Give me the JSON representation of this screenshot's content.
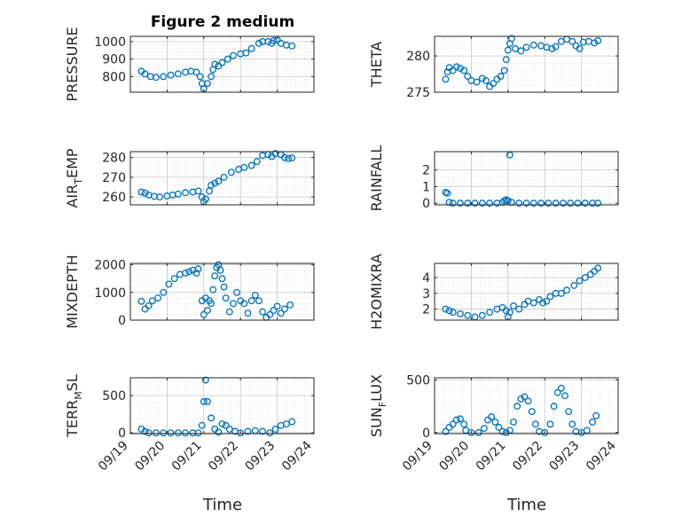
{
  "chart_data": {
    "type": "scatter",
    "title": "Figure 2 medium",
    "marker_color": "#0072BD",
    "grid": true,
    "x_tick_labels": [
      "09/19",
      "09/20",
      "09/21",
      "09/22",
      "09/23",
      "09/24"
    ],
    "x_tick_days": [
      19,
      20,
      21,
      22,
      23,
      24
    ],
    "xlim_days": [
      19,
      24
    ],
    "xlabel": "Time",
    "panels": [
      {
        "id": "pressure",
        "ylabel_main": "PRESSURE",
        "ylabel_sub": "",
        "ylabel_tail": "",
        "ylim": [
          710,
          1030
        ],
        "yticks": [
          800,
          900,
          1000
        ],
        "ytick_labels": [
          "800",
          "900",
          "1000"
        ],
        "series": [
          [
            19.3,
            830
          ],
          [
            19.4,
            815
          ],
          [
            19.55,
            800
          ],
          [
            19.7,
            795
          ],
          [
            19.9,
            800
          ],
          [
            20.1,
            808
          ],
          [
            20.3,
            815
          ],
          [
            20.5,
            825
          ],
          [
            20.65,
            830
          ],
          [
            20.8,
            825
          ],
          [
            20.9,
            800
          ],
          [
            20.95,
            760
          ],
          [
            21.0,
            730
          ],
          [
            21.1,
            760
          ],
          [
            21.2,
            800
          ],
          [
            21.25,
            840
          ],
          [
            21.3,
            870
          ],
          [
            21.4,
            860
          ],
          [
            21.5,
            880
          ],
          [
            21.65,
            900
          ],
          [
            21.8,
            920
          ],
          [
            22.0,
            930
          ],
          [
            22.15,
            935
          ],
          [
            22.3,
            960
          ],
          [
            22.5,
            990
          ],
          [
            22.6,
            1000
          ],
          [
            22.75,
            1000
          ],
          [
            22.85,
            990
          ],
          [
            22.9,
            1005
          ],
          [
            23.0,
            1010
          ],
          [
            23.1,
            990
          ],
          [
            23.25,
            980
          ],
          [
            23.4,
            975
          ]
        ]
      },
      {
        "id": "theta",
        "ylabel_main": "THETA",
        "ylabel_sub": "",
        "ylabel_tail": "",
        "ylim": [
          275,
          282.7
        ],
        "yticks": [
          275,
          280
        ],
        "ytick_labels": [
          "275",
          "280"
        ],
        "series": [
          [
            19.3,
            276.8
          ],
          [
            19.35,
            277.8
          ],
          [
            19.4,
            278.4
          ],
          [
            19.5,
            278.0
          ],
          [
            19.6,
            278.5
          ],
          [
            19.7,
            278.3
          ],
          [
            19.8,
            278.0
          ],
          [
            19.9,
            277.2
          ],
          [
            20.0,
            276.6
          ],
          [
            20.15,
            276.4
          ],
          [
            20.3,
            276.9
          ],
          [
            20.4,
            276.6
          ],
          [
            20.5,
            275.8
          ],
          [
            20.6,
            276.2
          ],
          [
            20.7,
            276.8
          ],
          [
            20.8,
            277.2
          ],
          [
            20.9,
            278.0
          ],
          [
            20.95,
            279.5
          ],
          [
            21.0,
            280.8
          ],
          [
            21.05,
            281.7
          ],
          [
            21.1,
            282.4
          ],
          [
            21.2,
            281.0
          ],
          [
            21.35,
            280.7
          ],
          [
            21.5,
            281.2
          ],
          [
            21.7,
            281.5
          ],
          [
            21.9,
            281.4
          ],
          [
            22.05,
            281.2
          ],
          [
            22.2,
            281.0
          ],
          [
            22.3,
            281.3
          ],
          [
            22.45,
            282.0
          ],
          [
            22.6,
            282.3
          ],
          [
            22.75,
            282.0
          ],
          [
            22.85,
            281.4
          ],
          [
            22.95,
            281.0
          ],
          [
            23.05,
            281.9
          ],
          [
            23.2,
            282.0
          ],
          [
            23.35,
            281.8
          ],
          [
            23.45,
            282.1
          ]
        ]
      },
      {
        "id": "air_temp",
        "ylabel_main": "AIR",
        "ylabel_sub": "T",
        "ylabel_tail": "EMP",
        "ylim": [
          256,
          283
        ],
        "yticks": [
          260,
          270,
          280
        ],
        "ytick_labels": [
          "260",
          "270",
          "280"
        ],
        "series": [
          [
            19.3,
            262.5
          ],
          [
            19.4,
            262.0
          ],
          [
            19.5,
            261.0
          ],
          [
            19.65,
            260.3
          ],
          [
            19.8,
            260.0
          ],
          [
            20.0,
            260.5
          ],
          [
            20.15,
            261.0
          ],
          [
            20.3,
            261.5
          ],
          [
            20.5,
            262.2
          ],
          [
            20.7,
            262.5
          ],
          [
            20.85,
            263.0
          ],
          [
            20.95,
            260.0
          ],
          [
            21.0,
            257.5
          ],
          [
            21.05,
            259.0
          ],
          [
            21.15,
            263.0
          ],
          [
            21.2,
            266.0
          ],
          [
            21.3,
            267.0
          ],
          [
            21.4,
            268.0
          ],
          [
            21.55,
            270.0
          ],
          [
            21.75,
            272.5
          ],
          [
            21.95,
            274.0
          ],
          [
            22.1,
            275.0
          ],
          [
            22.3,
            276.0
          ],
          [
            22.45,
            278.0
          ],
          [
            22.6,
            281.0
          ],
          [
            22.75,
            281.5
          ],
          [
            22.85,
            280.5
          ],
          [
            22.95,
            282.0
          ],
          [
            23.1,
            281.5
          ],
          [
            23.2,
            280.0
          ],
          [
            23.3,
            279.5
          ],
          [
            23.4,
            279.8
          ]
        ]
      },
      {
        "id": "rainfall",
        "ylabel_main": "RAINFALL",
        "ylabel_sub": "",
        "ylabel_tail": "",
        "ylim": [
          -0.1,
          3.1
        ],
        "yticks": [
          0,
          1,
          2
        ],
        "ytick_labels": [
          "0",
          "1",
          "2"
        ],
        "series": [
          [
            19.3,
            0.65
          ],
          [
            19.35,
            0.6
          ],
          [
            19.4,
            0.05
          ],
          [
            19.5,
            0
          ],
          [
            19.7,
            0
          ],
          [
            19.9,
            0
          ],
          [
            20.1,
            0
          ],
          [
            20.3,
            0
          ],
          [
            20.5,
            0
          ],
          [
            20.7,
            0
          ],
          [
            20.85,
            0.05
          ],
          [
            20.9,
            0.15
          ],
          [
            20.95,
            0.2
          ],
          [
            21.0,
            0.15
          ],
          [
            21.05,
            2.9
          ],
          [
            21.1,
            0.05
          ],
          [
            21.3,
            0
          ],
          [
            21.5,
            0
          ],
          [
            21.7,
            0
          ],
          [
            21.9,
            0
          ],
          [
            22.1,
            0
          ],
          [
            22.3,
            0
          ],
          [
            22.5,
            0
          ],
          [
            22.7,
            0
          ],
          [
            22.9,
            0
          ],
          [
            23.1,
            0
          ],
          [
            23.3,
            0
          ],
          [
            23.45,
            0
          ]
        ]
      },
      {
        "id": "mixdepth",
        "ylabel_main": "MIXDEPTH",
        "ylabel_sub": "",
        "ylabel_tail": "",
        "ylim": [
          0,
          2050
        ],
        "yticks": [
          0,
          1000,
          2000
        ],
        "ytick_labels": [
          "0",
          "1000",
          "2000"
        ],
        "series": [
          [
            19.3,
            680
          ],
          [
            19.4,
            400
          ],
          [
            19.5,
            520
          ],
          [
            19.6,
            700
          ],
          [
            19.75,
            800
          ],
          [
            19.9,
            1000
          ],
          [
            20.05,
            1300
          ],
          [
            20.2,
            1500
          ],
          [
            20.35,
            1650
          ],
          [
            20.5,
            1700
          ],
          [
            20.6,
            1750
          ],
          [
            20.7,
            1800
          ],
          [
            20.8,
            1700
          ],
          [
            20.85,
            1850
          ],
          [
            20.95,
            700
          ],
          [
            21.0,
            200
          ],
          [
            21.05,
            800
          ],
          [
            21.1,
            350
          ],
          [
            21.15,
            700
          ],
          [
            21.2,
            600
          ],
          [
            21.25,
            1100
          ],
          [
            21.3,
            1600
          ],
          [
            21.35,
            1900
          ],
          [
            21.4,
            2000
          ],
          [
            21.45,
            1800
          ],
          [
            21.5,
            1500
          ],
          [
            21.55,
            1200
          ],
          [
            21.6,
            800
          ],
          [
            21.7,
            300
          ],
          [
            21.8,
            600
          ],
          [
            21.9,
            1000
          ],
          [
            22.0,
            700
          ],
          [
            22.1,
            600
          ],
          [
            22.2,
            250
          ],
          [
            22.3,
            700
          ],
          [
            22.4,
            900
          ],
          [
            22.5,
            700
          ],
          [
            22.6,
            300
          ],
          [
            22.7,
            100
          ],
          [
            22.8,
            200
          ],
          [
            22.9,
            350
          ],
          [
            23.0,
            500
          ],
          [
            23.1,
            250
          ],
          [
            23.2,
            400
          ],
          [
            23.35,
            550
          ]
        ]
      },
      {
        "id": "h2omixra",
        "ylabel_main": "H2OMIXRA",
        "ylabel_sub": "",
        "ylabel_tail": "",
        "ylim": [
          1.3,
          4.9
        ],
        "yticks": [
          2,
          3,
          4
        ],
        "ytick_labels": [
          "2",
          "3",
          "4"
        ],
        "series": [
          [
            19.3,
            2.0
          ],
          [
            19.4,
            1.9
          ],
          [
            19.5,
            1.8
          ],
          [
            19.7,
            1.7
          ],
          [
            19.9,
            1.6
          ],
          [
            20.1,
            1.5
          ],
          [
            20.3,
            1.6
          ],
          [
            20.5,
            1.8
          ],
          [
            20.7,
            2.0
          ],
          [
            20.85,
            2.1
          ],
          [
            20.95,
            1.9
          ],
          [
            21.0,
            1.5
          ],
          [
            21.05,
            1.8
          ],
          [
            21.15,
            2.2
          ],
          [
            21.3,
            2.0
          ],
          [
            21.45,
            2.3
          ],
          [
            21.55,
            2.5
          ],
          [
            21.7,
            2.4
          ],
          [
            21.85,
            2.6
          ],
          [
            21.95,
            2.4
          ],
          [
            22.05,
            2.5
          ],
          [
            22.15,
            2.8
          ],
          [
            22.3,
            3.0
          ],
          [
            22.45,
            3.0
          ],
          [
            22.6,
            3.2
          ],
          [
            22.8,
            3.5
          ],
          [
            22.95,
            3.8
          ],
          [
            23.1,
            4.0
          ],
          [
            23.25,
            4.2
          ],
          [
            23.35,
            4.4
          ],
          [
            23.45,
            4.6
          ]
        ]
      },
      {
        "id": "terr_msl",
        "ylabel_main": "TERR",
        "ylabel_sub": "M",
        "ylabel_tail": "SL",
        "ylim": [
          -10,
          740
        ],
        "yticks": [
          0,
          500
        ],
        "ytick_labels": [
          "0",
          "500"
        ],
        "series": [
          [
            19.3,
            50
          ],
          [
            19.4,
            20
          ],
          [
            19.5,
            0
          ],
          [
            19.7,
            0
          ],
          [
            19.9,
            0
          ],
          [
            20.1,
            0
          ],
          [
            20.3,
            0
          ],
          [
            20.5,
            0
          ],
          [
            20.7,
            0
          ],
          [
            20.85,
            0
          ],
          [
            20.95,
            100
          ],
          [
            21.0,
            420
          ],
          [
            21.05,
            710
          ],
          [
            21.1,
            420
          ],
          [
            21.2,
            200
          ],
          [
            21.3,
            50
          ],
          [
            21.4,
            10
          ],
          [
            21.5,
            120
          ],
          [
            21.6,
            100
          ],
          [
            21.7,
            50
          ],
          [
            21.85,
            20
          ],
          [
            22.0,
            0
          ],
          [
            22.2,
            20
          ],
          [
            22.4,
            30
          ],
          [
            22.6,
            20
          ],
          [
            22.8,
            0
          ],
          [
            22.95,
            50
          ],
          [
            23.1,
            100
          ],
          [
            23.25,
            120
          ],
          [
            23.4,
            150
          ]
        ]
      },
      {
        "id": "sun_flux",
        "ylabel_main": "SUN",
        "ylabel_sub": "F",
        "ylabel_tail": "LUX",
        "ylim": [
          -10,
          520
        ],
        "yticks": [
          0,
          500
        ],
        "ytick_labels": [
          "0",
          "500"
        ],
        "series": [
          [
            19.3,
            10
          ],
          [
            19.4,
            50
          ],
          [
            19.5,
            80
          ],
          [
            19.6,
            120
          ],
          [
            19.7,
            130
          ],
          [
            19.8,
            80
          ],
          [
            19.85,
            20
          ],
          [
            20.0,
            0
          ],
          [
            20.2,
            0
          ],
          [
            20.35,
            40
          ],
          [
            20.45,
            120
          ],
          [
            20.55,
            150
          ],
          [
            20.65,
            100
          ],
          [
            20.75,
            50
          ],
          [
            20.85,
            10
          ],
          [
            20.95,
            0
          ],
          [
            21.05,
            20
          ],
          [
            21.15,
            100
          ],
          [
            21.25,
            250
          ],
          [
            21.35,
            320
          ],
          [
            21.45,
            340
          ],
          [
            21.55,
            300
          ],
          [
            21.65,
            200
          ],
          [
            21.75,
            80
          ],
          [
            21.85,
            10
          ],
          [
            22.0,
            0
          ],
          [
            22.15,
            80
          ],
          [
            22.25,
            250
          ],
          [
            22.35,
            380
          ],
          [
            22.45,
            420
          ],
          [
            22.55,
            350
          ],
          [
            22.65,
            200
          ],
          [
            22.75,
            80
          ],
          [
            22.85,
            10
          ],
          [
            23.0,
            0
          ],
          [
            23.15,
            20
          ],
          [
            23.3,
            100
          ],
          [
            23.4,
            160
          ]
        ]
      }
    ]
  }
}
